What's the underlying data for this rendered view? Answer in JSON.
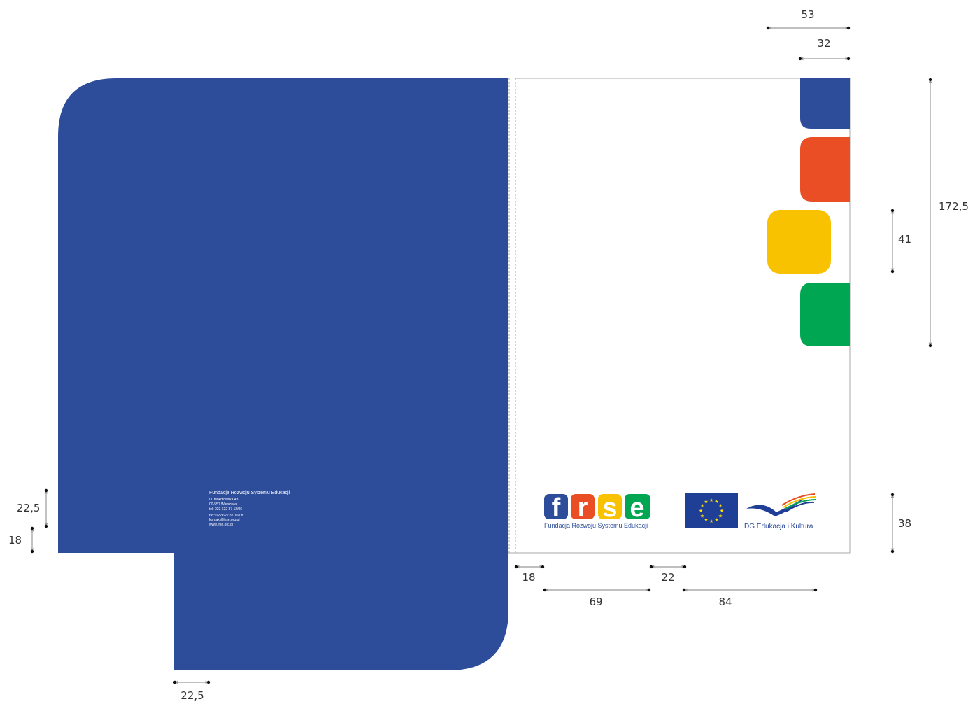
{
  "colors": {
    "folder_blue": "#2d4d9b",
    "tab_blue": "#2d4d9b",
    "tab_orange": "#e94e24",
    "tab_yellow": "#f9c200",
    "tab_green": "#00a651",
    "frse_f": "#2d4d9b",
    "frse_r": "#e94e24",
    "frse_s": "#f9c200",
    "frse_e": "#00a651",
    "eu_flag": "#1f3f96",
    "eu_star": "#ffdd00",
    "dimension_line": "#999999"
  },
  "address": {
    "name": "Fundacja Rozwoju Systemu Edukacji",
    "street": "ul. Mokotowska 43",
    "city": "00-551 Warszawa",
    "tel": "tel: 022 622 37 12/06",
    "fax": "fax: 022 622 37 10/08",
    "email": "kontakt@frse.org.pl",
    "web": "www.frse.org.pl"
  },
  "logos": {
    "frse_letters": [
      "f",
      "r",
      "s",
      "e"
    ],
    "frse_caption": "Fundacja Rozwoju Systemu Edukacji",
    "dg_caption": "DG Edukacja i Kultura"
  },
  "dimensions": {
    "top_outer": "53",
    "top_inner": "32",
    "right_height": "172,5",
    "tab_height": "41",
    "logo_height": "38",
    "left_upper": "22,5",
    "left_lower": "18",
    "bottom_flap": "22,5",
    "fold_gap": "18",
    "frse_width": "69",
    "logo_gap": "22",
    "eu_width": "84"
  }
}
